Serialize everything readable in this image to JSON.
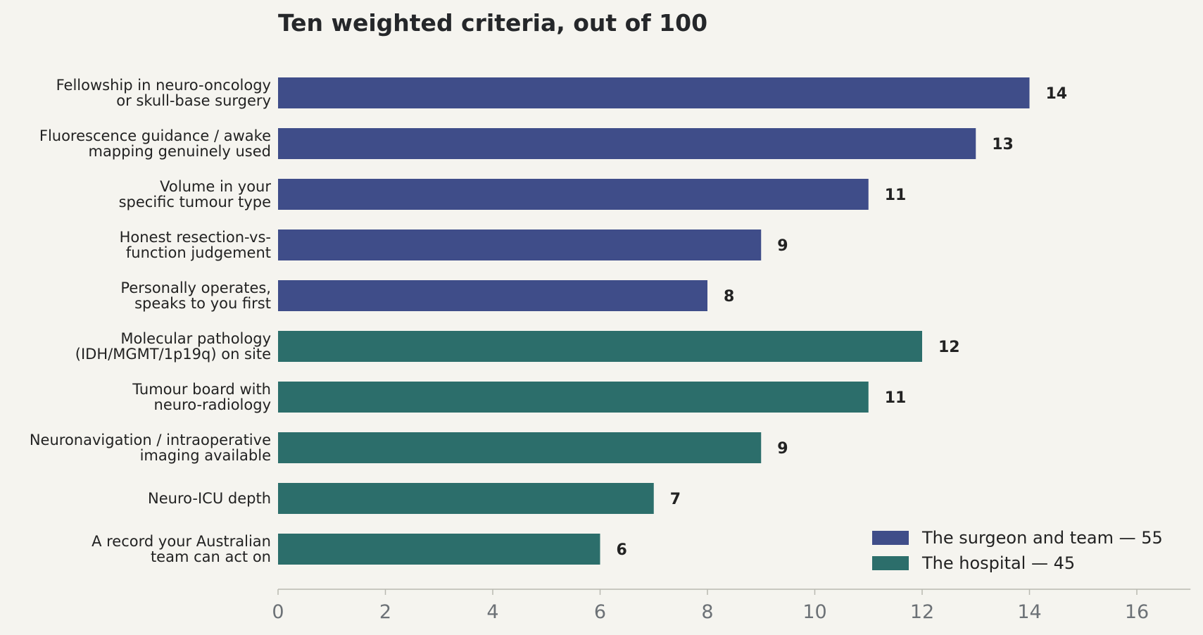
{
  "chart_data": {
    "type": "bar",
    "orientation": "horizontal",
    "title": "Ten weighted criteria, out of 100",
    "xlabel": "",
    "ylabel": "",
    "xlim": [
      0,
      17
    ],
    "xticks": [
      0,
      2,
      4,
      6,
      8,
      10,
      12,
      14,
      16
    ],
    "grid": false,
    "legend_position": "bottom-right",
    "categories": [
      [
        "Fellowship in neuro-oncology",
        "or skull-base surgery"
      ],
      [
        "Fluorescence guidance / awake",
        "mapping genuinely used"
      ],
      [
        "Volume in your",
        "specific tumour type"
      ],
      [
        "Honest resection-vs-",
        "function judgement"
      ],
      [
        "Personally operates,",
        "speaks to you first"
      ],
      [
        "Molecular pathology",
        "(IDH/MGMT/1p19q) on site"
      ],
      [
        "Tumour board with",
        "neuro-radiology"
      ],
      [
        "Neuronavigation / intraoperative",
        "imaging available"
      ],
      [
        "Neuro-ICU depth"
      ],
      [
        "A record your Australian",
        "team can act on"
      ]
    ],
    "values": [
      14,
      13,
      11,
      9,
      8,
      12,
      11,
      9,
      7,
      6
    ],
    "groups": [
      0,
      0,
      0,
      0,
      0,
      1,
      1,
      1,
      1,
      1
    ],
    "series": [
      {
        "name": "The surgeon and team — 55",
        "color": "#3f4d89"
      },
      {
        "name": "The hospital — 45",
        "color": "#2c6e6b"
      }
    ]
  }
}
